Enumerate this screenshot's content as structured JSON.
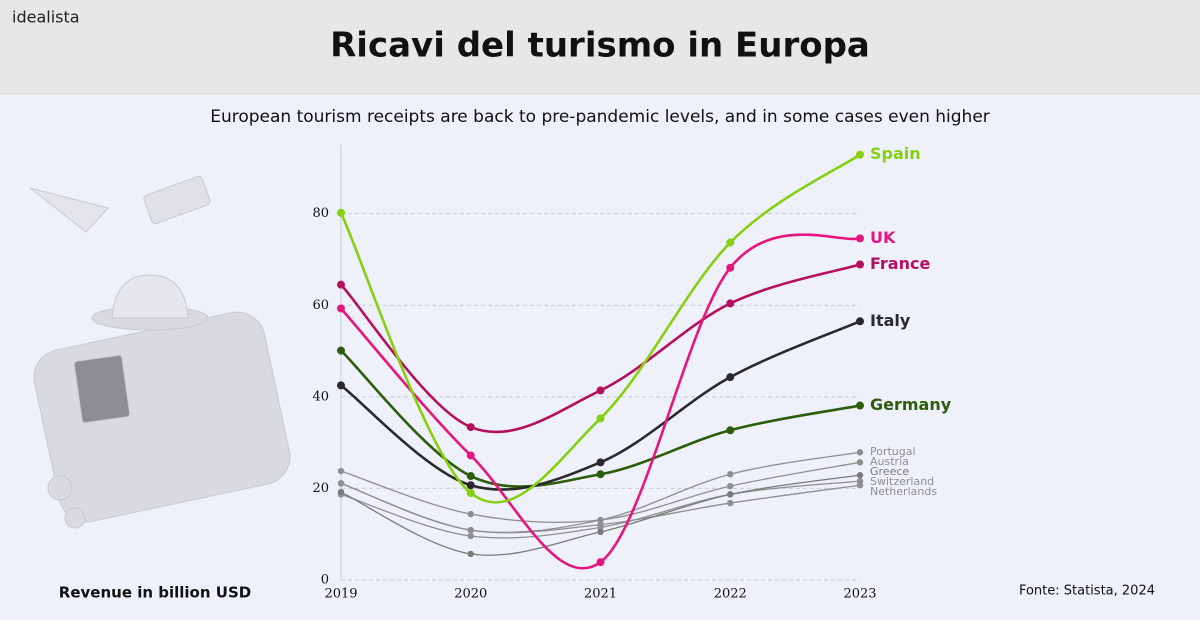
{
  "brand": "idealista",
  "chart_data": {
    "type": "line",
    "title": "Ricavi del turismo in Europa",
    "subtitle": "European tourism receipts are back to pre-pandemic levels, and in some cases even higher",
    "y_label": "Revenue in billion USD",
    "source": "Fonte: Statista, 2024",
    "categories": [
      "2019",
      "2020",
      "2021",
      "2022",
      "2023"
    ],
    "ylim": [
      0,
      95
    ],
    "yticks": [
      0,
      20,
      40,
      60,
      80
    ],
    "grid": true,
    "series": [
      {
        "name": "Spain",
        "color": "#86d00f",
        "values": [
          80.2,
          19,
          35.3,
          73.7,
          92.9
        ]
      },
      {
        "name": "UK",
        "color": "#e5177e",
        "values": [
          59.3,
          27.2,
          3.9,
          68.2,
          74.6
        ]
      },
      {
        "name": "France",
        "color": "#b4105f",
        "values": [
          64.5,
          33.4,
          41.4,
          60.4,
          68.9
        ]
      },
      {
        "name": "Italy",
        "color": "#2a2a2a",
        "values": [
          42.5,
          20.7,
          25.7,
          44.3,
          56.5
        ]
      },
      {
        "name": "Germany",
        "color": "#2d5c0a",
        "values": [
          50.1,
          22.7,
          23.1,
          32.7,
          38.1
        ]
      },
      {
        "name": "Portugal",
        "color": "#8f8f8f",
        "values": [
          21.1,
          10.9,
          13.1,
          23.1,
          27.9
        ]
      },
      {
        "name": "Austria",
        "color": "#8f8f8f",
        "values": [
          23.8,
          14.4,
          13.1,
          20.5,
          25.7
        ]
      },
      {
        "name": "Greece",
        "color": "#7a7a7a",
        "values": [
          19.2,
          5.7,
          10.5,
          18.7,
          22.9
        ]
      },
      {
        "name": "Switzerland",
        "color": "#8f8f8f",
        "values": [
          18.7,
          9.6,
          11.5,
          18.7,
          21.6
        ]
      },
      {
        "name": "Netherlands",
        "color": "#8f8f8f",
        "values": [
          21.1,
          10.9,
          12.1,
          16.8,
          20.7
        ]
      }
    ]
  }
}
